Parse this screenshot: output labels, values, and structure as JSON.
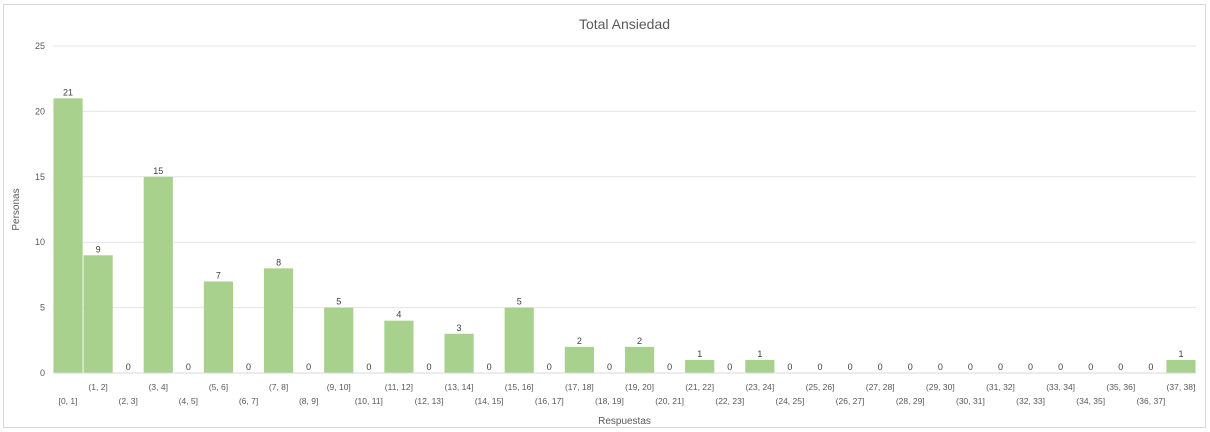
{
  "chart_data": {
    "type": "bar",
    "title": "Total Ansiedad",
    "xlabel": "Respuestas",
    "ylabel": "Personas",
    "ylim": [
      0,
      25
    ],
    "yticks": [
      0,
      5,
      10,
      15,
      20,
      25
    ],
    "grid": true,
    "legend": "none",
    "bar_color": "#a9d18e",
    "categories": [
      "[0, 1]",
      "(1, 2]",
      "(2, 3]",
      "(3, 4]",
      "(4, 5]",
      "(5, 6]",
      "(6, 7]",
      "(7, 8]",
      "(8, 9]",
      "(9, 10]",
      "(10, 11]",
      "(11, 12]",
      "(12, 13]",
      "(13, 14]",
      "(14, 15]",
      "(15, 16]",
      "(16, 17]",
      "(17, 18]",
      "(18, 19]",
      "(19, 20]",
      "(20, 21]",
      "(21, 22]",
      "(22, 23]",
      "(23, 24]",
      "(24, 25]",
      "(25, 26]",
      "(26, 27]",
      "(27, 28]",
      "(28, 29]",
      "(29, 30]",
      "(30, 31]",
      "(31, 32]",
      "(32, 33]",
      "(33, 34]",
      "(34, 35]",
      "(35, 36]",
      "(36, 37]",
      "(37, 38]"
    ],
    "values": [
      21,
      9,
      0,
      15,
      0,
      7,
      0,
      8,
      0,
      5,
      0,
      4,
      0,
      3,
      0,
      5,
      0,
      2,
      0,
      2,
      0,
      1,
      0,
      1,
      0,
      0,
      0,
      0,
      0,
      0,
      0,
      0,
      0,
      0,
      0,
      0,
      0,
      1
    ]
  }
}
